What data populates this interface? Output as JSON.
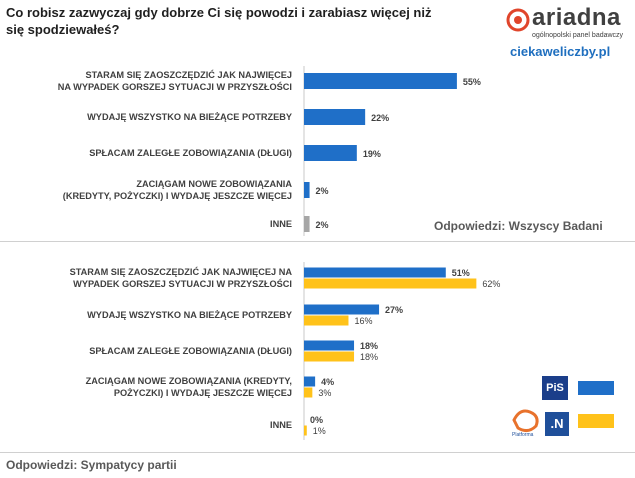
{
  "title": "Co robisz zazwyczaj gdy dobrze Ci się powodzi i zarabiasz więcej niż się spodziewałeś?",
  "brand": {
    "name": "ariadna",
    "tagline": "ogólnopolski panel badawczy",
    "site": "ciekaweliczby.pl"
  },
  "notes": {
    "top": "Odpowiedzi: Wszyscy Badani",
    "bottom": "Odpowiedzi: Sympatycy partii"
  },
  "colors": {
    "blue": "#1f6fc8",
    "yellow": "#ffc21a",
    "gray": "#a6a6a6"
  },
  "parties": {
    "pis_label": "PiS",
    "po_label": "Platforma Obywatelska",
    "n_label": ".N"
  },
  "chart_data": [
    {
      "type": "bar",
      "orientation": "horizontal",
      "title": "Odpowiedzi: Wszyscy Badani",
      "categories": [
        [
          "STARAM SIĘ ZAOSZCZĘDZIĆ JAK NAJWIĘCEJ",
          "NA WYPADEK GORSZEJ SYTUACJI W PRZYSZŁOŚCI"
        ],
        [
          "WYDAJĘ WSZYSTKO NA BIEŻĄCE POTRZEBY"
        ],
        [
          "SPŁACAM ZALEGŁE ZOBOWIĄZANIA (DŁUGI)"
        ],
        [
          "ZACIĄGAM NOWE ZOBOWIĄZANIA",
          "(KREDYTY, POŻYCZKI) I WYDAJĘ JESZCZE WIĘCEJ"
        ],
        [
          "INNE"
        ]
      ],
      "values": [
        55,
        22,
        19,
        2,
        2
      ],
      "value_labels": [
        "55%",
        "22%",
        "19%",
        "2%",
        "2%"
      ],
      "unit": "%"
    },
    {
      "type": "bar",
      "orientation": "horizontal",
      "title": "Odpowiedzi: Sympatycy partii",
      "categories": [
        [
          "STARAM SIĘ ZAOSZCZĘDZIĆ JAK NAJWIĘCEJ NA",
          "WYPADEK GORSZEJ SYTUACJI W PRZYSZŁOŚCI"
        ],
        [
          "WYDAJĘ WSZYSTKO NA BIEŻĄCE POTRZEBY"
        ],
        [
          "SPŁACAM ZALEGŁE ZOBOWIĄZANIA (DŁUGI)"
        ],
        [
          "ZACIĄGAM NOWE ZOBOWIĄZANIA (KREDYTY,",
          "POŻYCZKI) I WYDAJĘ JESZCZE WIĘCEJ"
        ],
        [
          "INNE"
        ]
      ],
      "series": [
        {
          "name": "PiS",
          "values": [
            51,
            27,
            18,
            4,
            0
          ],
          "value_labels": [
            "51%",
            "27%",
            "18%",
            "4%",
            "0%"
          ]
        },
        {
          "name": "PO / .N",
          "values": [
            62,
            16,
            18,
            3,
            1
          ],
          "value_labels": [
            "62%",
            "16%",
            "18%",
            "3%",
            "1%"
          ]
        }
      ],
      "unit": "%"
    }
  ]
}
